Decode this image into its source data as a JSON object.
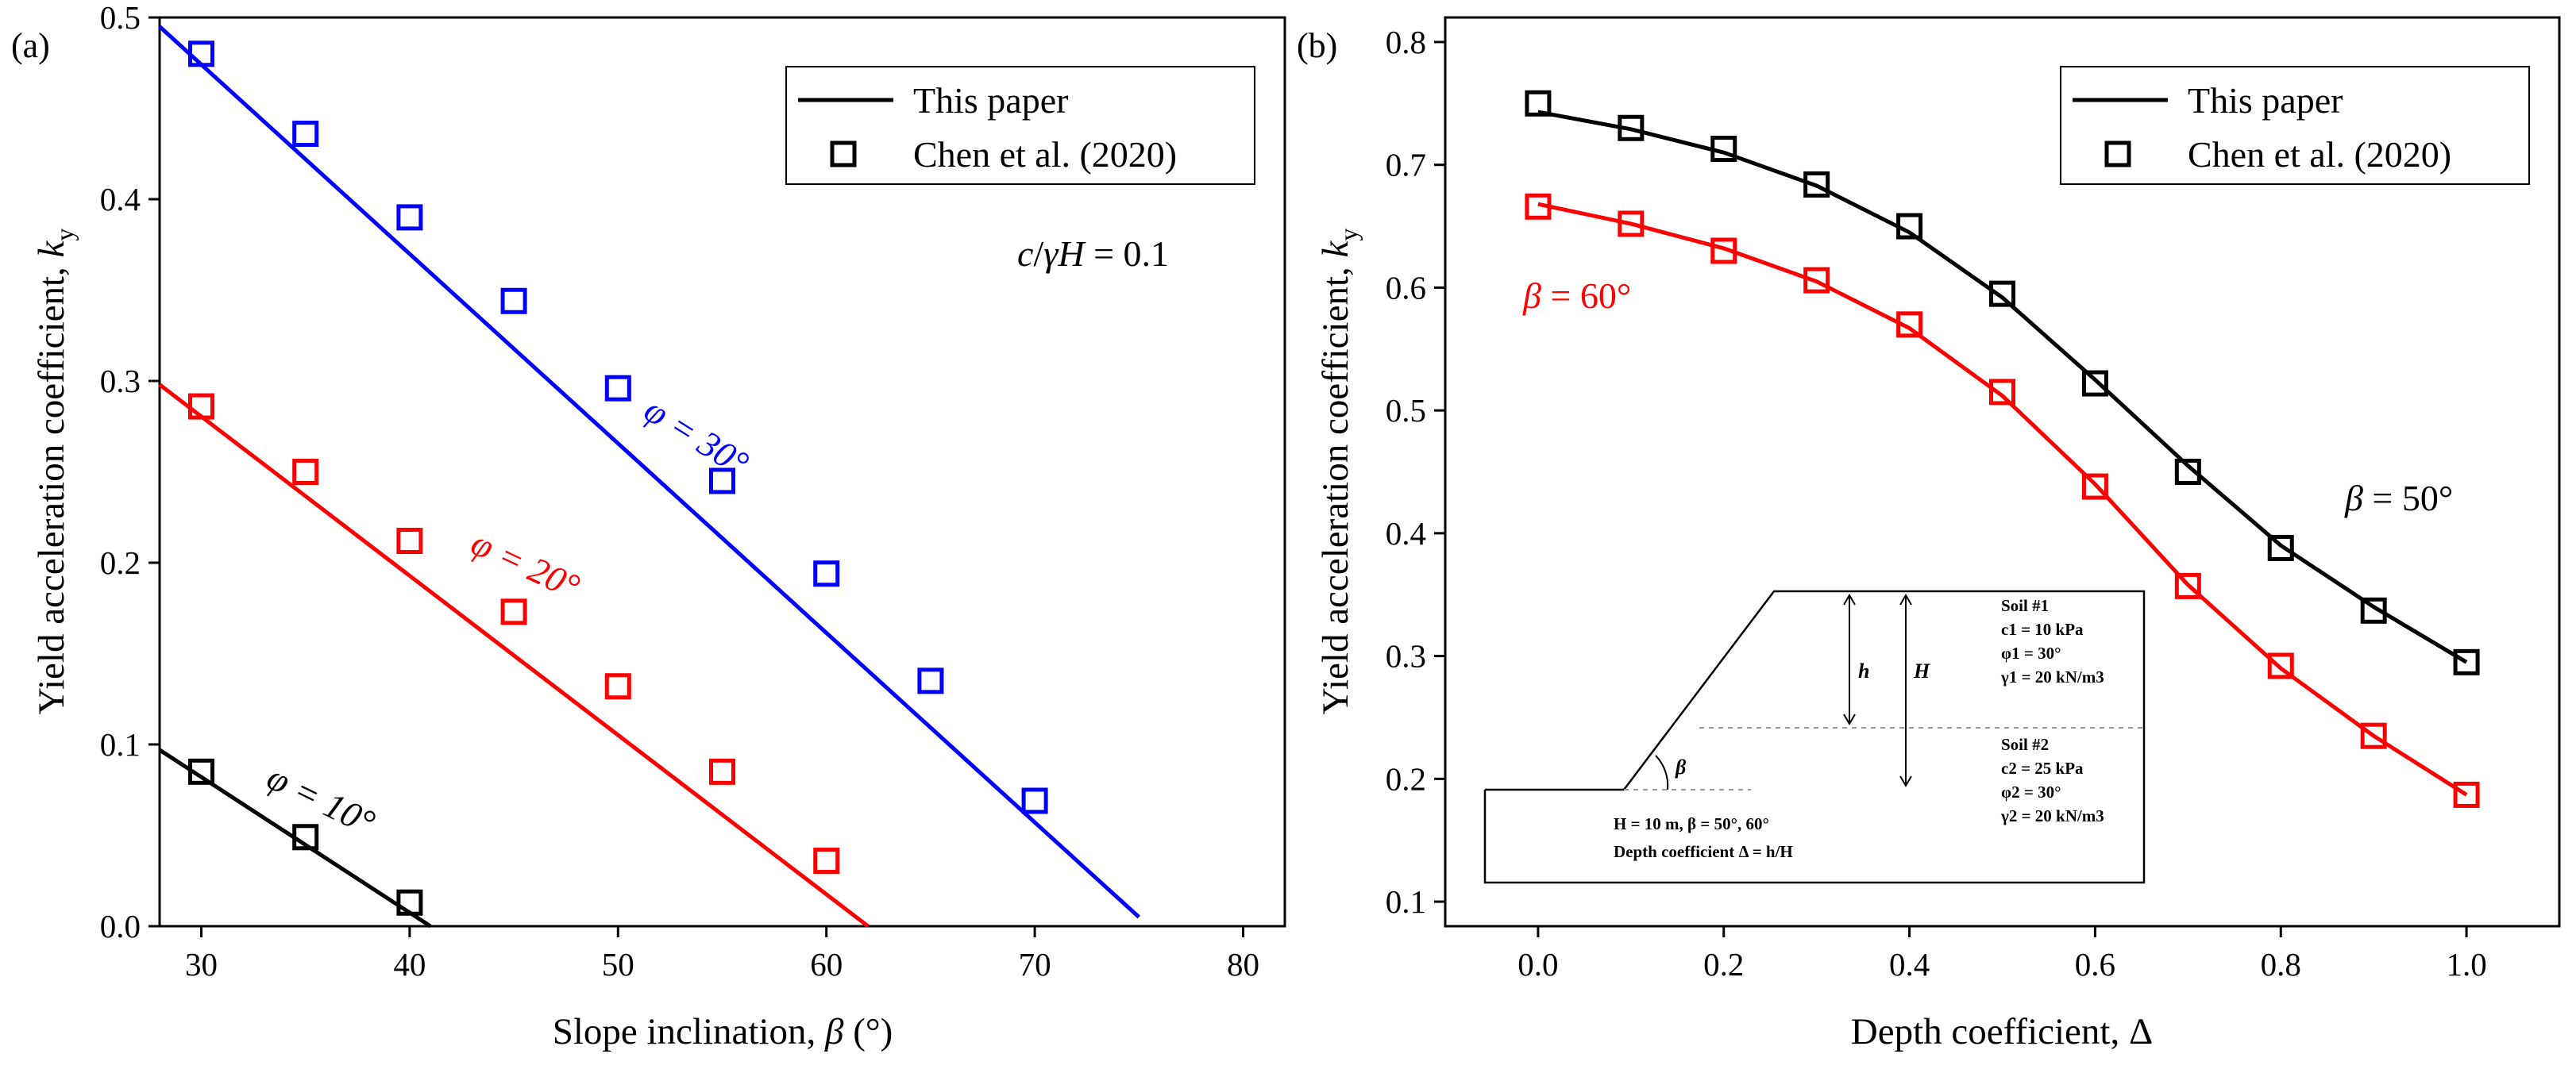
{
  "colors": {
    "black": "#000000",
    "red": "#ff0000",
    "blue": "#0000ff"
  },
  "chart_data": [
    {
      "panel": "(a)",
      "type": "line",
      "xlabel": "Slope inclination, β (°)",
      "ylabel": "Yield acceleration coefficient, k_y",
      "xlim": [
        28,
        82
      ],
      "ylim": [
        0.0,
        0.5
      ],
      "xticks": [
        30,
        40,
        50,
        60,
        70,
        80
      ],
      "yticks": [
        0.0,
        0.1,
        0.2,
        0.3,
        0.4,
        0.5
      ],
      "legend": {
        "position": "top-right",
        "line_label": "This paper",
        "marker_label": "Chen et al. (2020)"
      },
      "condition": "c/γH = 0.1",
      "series": [
        {
          "label": "φ = 10°",
          "color": "#000000",
          "line": {
            "x": [
              28,
              41
            ],
            "y": [
              0.097,
              0.0
            ]
          },
          "markers": {
            "x": [
              30,
              35,
              40
            ],
            "y": [
              0.085,
              0.049,
              0.013
            ]
          }
        },
        {
          "label": "φ = 20°",
          "color": "#ff0000",
          "line": {
            "x": [
              28,
              62
            ],
            "y": [
              0.298,
              0.0
            ]
          },
          "markers": {
            "x": [
              30,
              35,
              40,
              45,
              50,
              55,
              60
            ],
            "y": [
              0.286,
              0.25,
              0.212,
              0.173,
              0.132,
              0.085,
              0.036
            ]
          }
        },
        {
          "label": "φ = 30°",
          "color": "#0000ff",
          "line": {
            "x": [
              28,
              75
            ],
            "y": [
              0.495,
              0.005
            ]
          },
          "markers": {
            "x": [
              30,
              35,
              40,
              45,
              50,
              55,
              60,
              65,
              70
            ],
            "y": [
              0.48,
              0.436,
              0.39,
              0.344,
              0.296,
              0.245,
              0.194,
              0.135,
              0.069
            ]
          }
        }
      ]
    },
    {
      "panel": "(b)",
      "type": "line",
      "xlabel": "Depth coefficient, Δ",
      "ylabel": "Yield acceleration coefficient, k_y",
      "xlim": [
        -0.1,
        1.1
      ],
      "ylim": [
        0.08,
        0.82
      ],
      "xticks": [
        0.0,
        0.2,
        0.4,
        0.6,
        0.8,
        1.0
      ],
      "yticks": [
        0.1,
        0.2,
        0.3,
        0.4,
        0.5,
        0.6,
        0.7,
        0.8
      ],
      "legend": {
        "position": "top-right",
        "line_label": "This paper",
        "marker_label": "Chen et al. (2020)"
      },
      "series": [
        {
          "label": "β = 50°",
          "color": "#000000",
          "line": {
            "x": [
              0.0,
              0.1,
              0.2,
              0.3,
              0.4,
              0.5,
              0.6,
              0.7,
              0.8,
              0.9,
              1.0
            ],
            "y": [
              0.743,
              0.729,
              0.71,
              0.683,
              0.645,
              0.592,
              0.525,
              0.455,
              0.39,
              0.34,
              0.295
            ]
          },
          "markers": {
            "x": [
              0.0,
              0.1,
              0.2,
              0.3,
              0.4,
              0.5,
              0.6,
              0.7,
              0.8,
              0.9,
              1.0
            ],
            "y": [
              0.75,
              0.73,
              0.713,
              0.684,
              0.65,
              0.595,
              0.522,
              0.45,
              0.388,
              0.337,
              0.295
            ]
          }
        },
        {
          "label": "β = 60°",
          "color": "#ff0000",
          "line": {
            "x": [
              0.0,
              0.1,
              0.2,
              0.3,
              0.4,
              0.5,
              0.6,
              0.7,
              0.8,
              0.9,
              1.0
            ],
            "y": [
              0.668,
              0.652,
              0.632,
              0.605,
              0.567,
              0.512,
              0.44,
              0.358,
              0.29,
              0.235,
              0.187
            ]
          },
          "markers": {
            "x": [
              0.0,
              0.1,
              0.2,
              0.3,
              0.4,
              0.5,
              0.6,
              0.7,
              0.8,
              0.9,
              1.0
            ],
            "y": [
              0.666,
              0.652,
              0.63,
              0.606,
              0.57,
              0.515,
              0.438,
              0.357,
              0.292,
              0.235,
              0.187
            ]
          }
        }
      ],
      "inset": {
        "soil1": {
          "title": "Soil #1",
          "c": "c1 = 10 kPa",
          "phi": "φ1 = 30°",
          "gamma": "γ1 = 20 kN/m3"
        },
        "soil2": {
          "title": "Soil #2",
          "c": "c2 = 25 kPa",
          "phi": "φ2 = 30°",
          "gamma": "γ2 = 20 kN/m3"
        },
        "h_label": "h",
        "H_label": "H",
        "beta_label": "β",
        "geometry": "H = 10 m,  β = 50°, 60°",
        "depth_note": "Depth coefficient Δ = h/H"
      }
    }
  ]
}
